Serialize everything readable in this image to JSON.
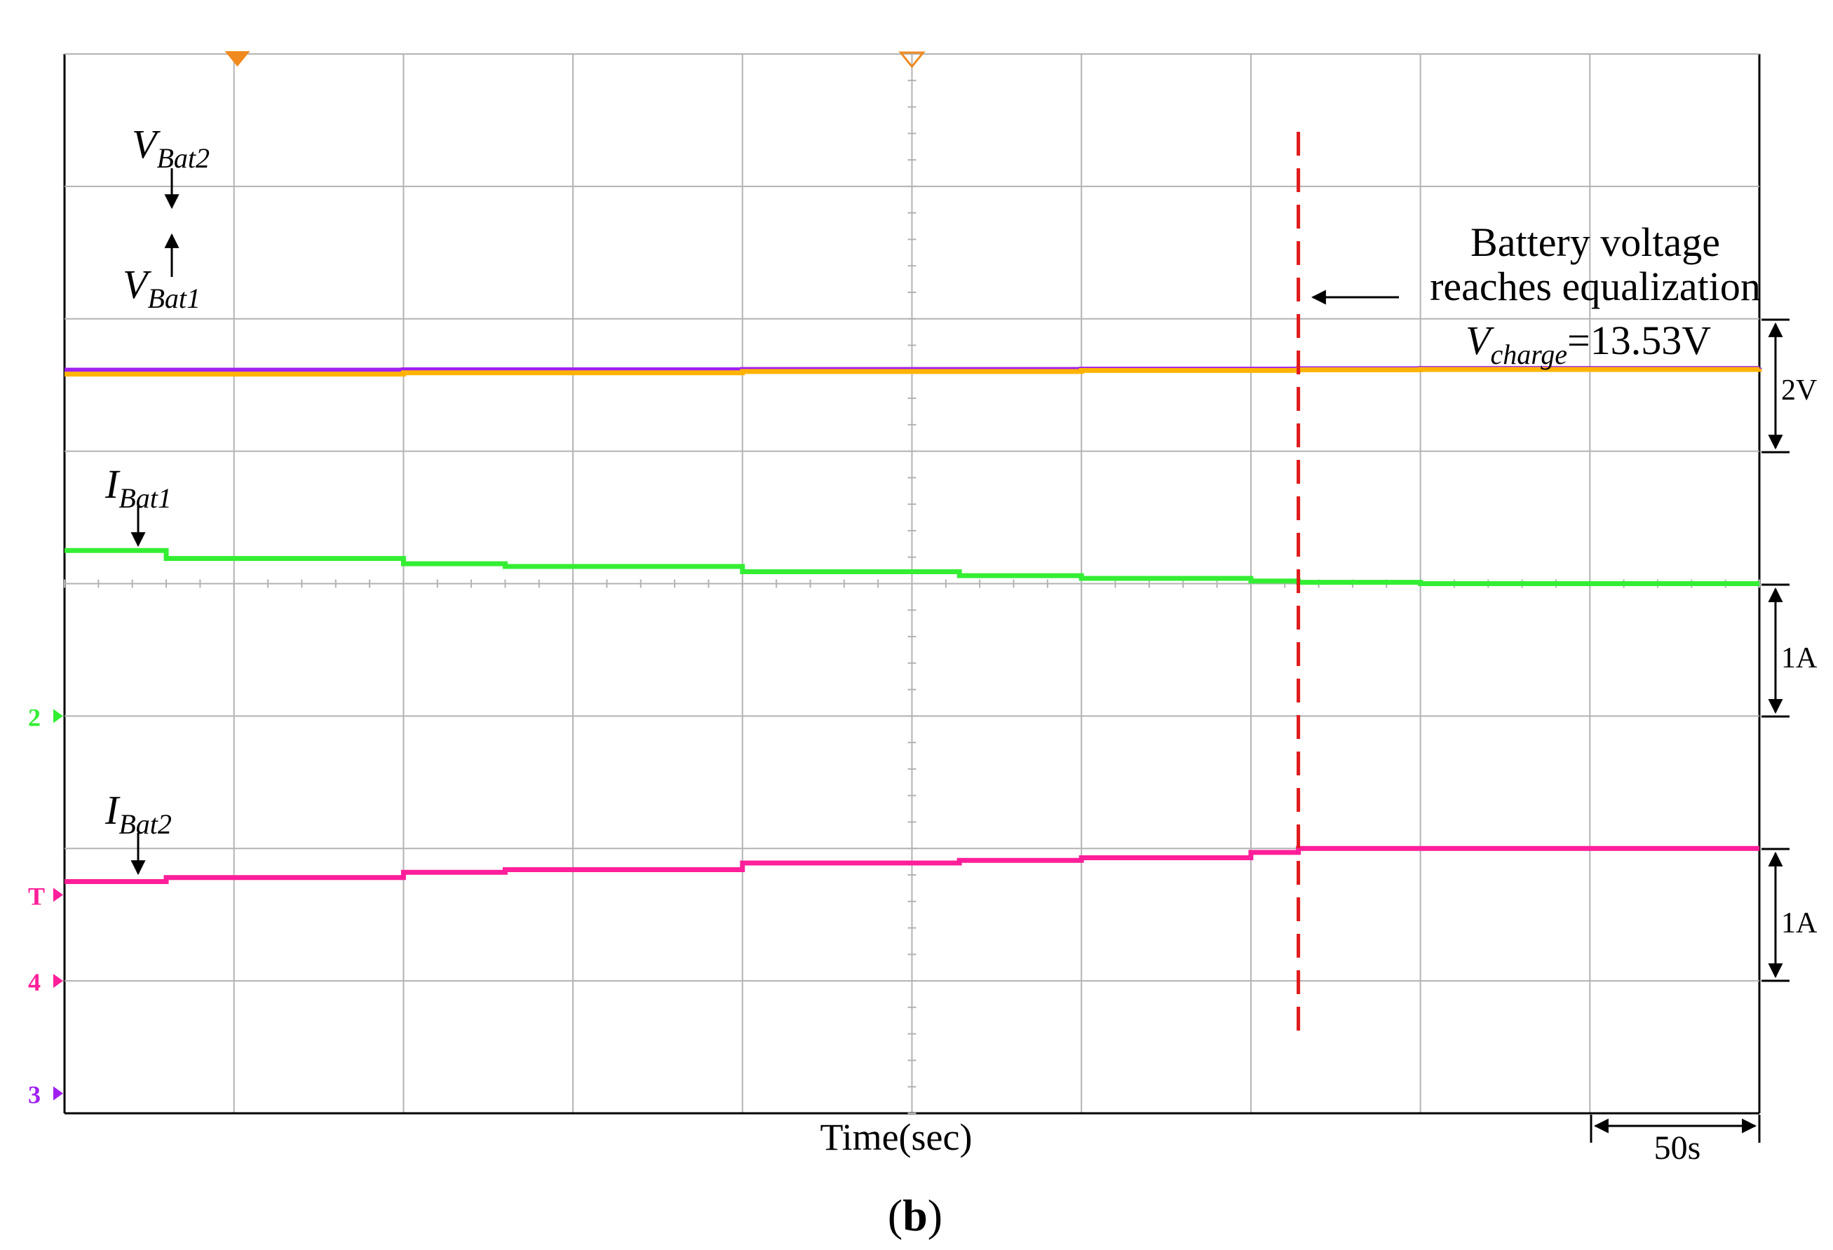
{
  "chart_data": {
    "type": "line",
    "title": "",
    "xlabel": "Time(sec)",
    "ylabel": "",
    "grid": true,
    "x_divisions": 10,
    "y_divisions": 8,
    "time_per_div_s": 50,
    "xlim": [
      0,
      500
    ],
    "series": [
      {
        "name": "V_Bat2",
        "label_main": "V",
        "label_sub": "Bat2",
        "color": "#a020f0",
        "x": [
          0,
          100,
          200,
          300,
          364,
          400,
          500
        ],
        "y": [
          6.45,
          6.46,
          6.47,
          6.48,
          6.49,
          6.5,
          6.52
        ]
      },
      {
        "name": "V_Bat1",
        "label_main": "V",
        "label_sub": "Bat1",
        "color": "#ffb300",
        "x": [
          0,
          100,
          200,
          300,
          364,
          400,
          500
        ],
        "y": [
          6.33,
          6.37,
          6.41,
          6.44,
          6.46,
          6.47,
          6.49
        ]
      },
      {
        "name": "I_Bat1",
        "label_main": "I",
        "label_sub": "Bat1",
        "color": "#33ee33",
        "x": [
          0,
          30,
          100,
          130,
          200,
          264,
          300,
          350,
          364,
          400,
          500
        ],
        "y": [
          0.25,
          0.19,
          0.15,
          0.13,
          0.09,
          0.06,
          0.04,
          0.02,
          0.01,
          0.0,
          0.0
        ]
      },
      {
        "name": "I_Bat2",
        "label_main": "I",
        "label_sub": "Bat2",
        "color": "#ff1f9a",
        "x": [
          0,
          30,
          100,
          130,
          200,
          264,
          300,
          350,
          364,
          400,
          500
        ],
        "y": [
          -0.25,
          -0.22,
          -0.18,
          -0.16,
          -0.11,
          -0.09,
          -0.07,
          -0.03,
          0.0,
          0.0,
          0.0
        ]
      }
    ],
    "equalization_x": 364,
    "annotations": {
      "equalization_line1": "Battery voltage",
      "equalization_line2": "reaches equalization",
      "vcharge_main": "V",
      "vcharge_sub": "charge",
      "vcharge_value": "=13.53V"
    },
    "scale_labels": {
      "voltage": "2V",
      "current_1": "1A",
      "current_2": "1A",
      "time": "50s"
    },
    "channel_markers": [
      "2",
      "T",
      "4",
      "3"
    ],
    "caption_letter": "b"
  },
  "colors": {
    "grid": "#b3b3b3",
    "equalization_line": "#e01b1b",
    "v_bat2": "#a020f0",
    "v_bat1": "#ffb300",
    "i_bat1": "#33ee33",
    "i_bat2": "#ff1f9a",
    "trigger_marker": "#f08a1e"
  }
}
